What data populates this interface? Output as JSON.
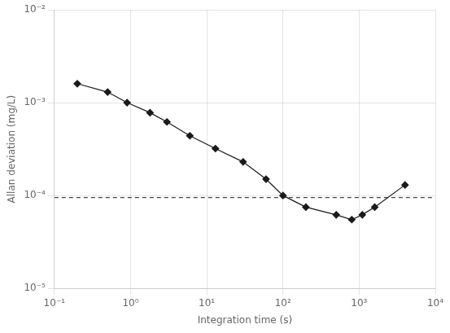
{
  "chart_data": {
    "type": "line",
    "log": true,
    "grid": true,
    "xlabel": "Integration time (s)",
    "ylabel": "Allan deviation (mg/L)",
    "x": [
      0.2,
      0.5,
      0.9,
      1.8,
      3.0,
      6.0,
      13.0,
      30.0,
      60.0,
      100.0,
      200.0,
      500.0,
      800.0,
      1100.0,
      1600.0,
      4000.0
    ],
    "series": [
      {
        "values": [
          0.0016,
          0.0013,
          0.001,
          0.00078,
          0.00062,
          0.00044,
          0.00032,
          0.00023,
          0.00015,
          0.0001,
          7.5e-05,
          6.2e-05,
          5.5e-05,
          6.2e-05,
          7.5e-05,
          0.00013
        ],
        "color": "#1a1a1a",
        "marker": "diamond",
        "line_style": "solid"
      }
    ],
    "hlines": [
      {
        "y": 9.5e-05,
        "color": "#1a1a1a",
        "line_style": "dashed"
      }
    ],
    "xlim": [
      0.1,
      10000
    ],
    "ylim": [
      1e-05,
      0.01
    ],
    "xticks": [
      {
        "value": 0.1,
        "label": "10⁻¹"
      },
      {
        "value": 1,
        "label": "10⁰"
      },
      {
        "value": 10,
        "label": "10¹"
      },
      {
        "value": 100,
        "label": "10²"
      },
      {
        "value": 1000,
        "label": "10³"
      },
      {
        "value": 10000,
        "label": "10⁴"
      }
    ],
    "yticks": [
      {
        "value": 1e-05,
        "label": "10⁻⁵"
      },
      {
        "value": 0.0001,
        "label": "10⁻⁴"
      },
      {
        "value": 0.001,
        "label": "10⁻³"
      },
      {
        "value": 0.01,
        "label": "10⁻²"
      }
    ]
  }
}
